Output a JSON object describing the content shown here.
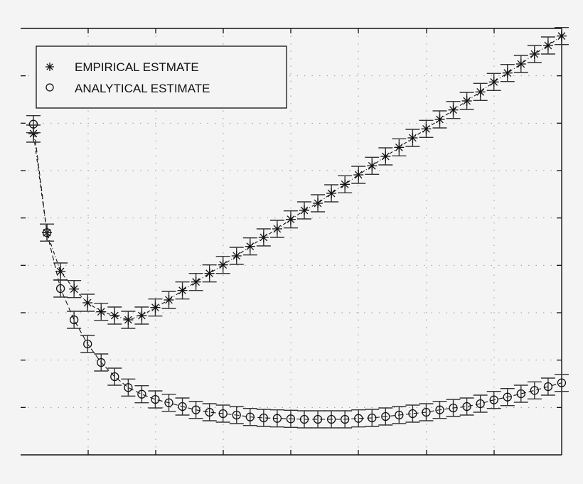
{
  "chart_data": {
    "type": "scatter",
    "title": "",
    "xlabel": "",
    "ylabel": "",
    "xlim": [
      0,
      40.9
    ],
    "ylim": [
      0,
      9
    ],
    "grid": true,
    "tick_labels_visible": false,
    "x_ticks": [
      5,
      10,
      15,
      20,
      25,
      30,
      35
    ],
    "y_ticks": [
      1,
      2,
      3,
      4,
      5,
      6,
      7,
      8
    ],
    "legend_position": "upper left",
    "x": [
      1,
      2,
      3,
      4,
      5,
      6,
      7,
      8,
      9,
      10,
      11,
      12,
      13,
      14,
      15,
      16,
      17,
      18,
      19,
      20,
      21,
      22,
      23,
      24,
      25,
      26,
      27,
      28,
      29,
      30,
      31,
      32,
      33,
      34,
      35,
      36,
      37,
      38,
      39,
      40
    ],
    "series": [
      {
        "name": "EMPIRICAL ESTMATE",
        "marker": "asterisk",
        "line": "dash-dot",
        "error": 0.18,
        "values": [
          6.78,
          4.69,
          3.87,
          3.5,
          3.21,
          3.02,
          2.94,
          2.85,
          2.94,
          3.11,
          3.27,
          3.47,
          3.65,
          3.83,
          4.01,
          4.2,
          4.4,
          4.59,
          4.77,
          4.97,
          5.16,
          5.31,
          5.52,
          5.71,
          5.91,
          6.1,
          6.3,
          6.49,
          6.69,
          6.88,
          7.08,
          7.28,
          7.47,
          7.66,
          7.87,
          8.06,
          8.25,
          8.46,
          8.64,
          8.84
        ]
      },
      {
        "name": "ANALYTICAL ESTIMATE",
        "marker": "circle",
        "line": "dashed",
        "error": 0.18,
        "values": [
          6.98,
          4.69,
          3.51,
          2.85,
          2.34,
          1.95,
          1.65,
          1.42,
          1.28,
          1.17,
          1.1,
          1.02,
          0.95,
          0.9,
          0.87,
          0.84,
          0.8,
          0.78,
          0.77,
          0.76,
          0.75,
          0.75,
          0.75,
          0.75,
          0.77,
          0.78,
          0.81,
          0.84,
          0.87,
          0.9,
          0.95,
          0.99,
          1.02,
          1.08,
          1.16,
          1.22,
          1.29,
          1.36,
          1.44,
          1.52
        ]
      }
    ]
  },
  "legend": {
    "items": [
      {
        "symbol": "✳",
        "label": "EMPIRICAL ESTMATE"
      },
      {
        "symbol": "○",
        "label": "ANALYTICAL ESTIMATE"
      }
    ]
  },
  "colors": {
    "background": "#f4f4f4",
    "axis": "#111111",
    "grid": "#9a9a9a",
    "marker": "#111111",
    "errorbar": "#333333"
  }
}
